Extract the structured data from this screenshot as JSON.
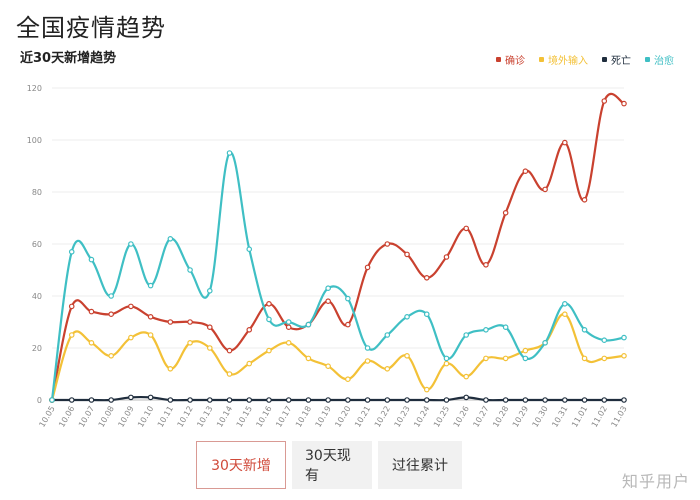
{
  "page": {
    "title": "全国疫情趋势"
  },
  "tabs": [
    {
      "label": "30天新增",
      "active": true
    },
    {
      "label": "30天现有",
      "active": false
    },
    {
      "label": "过往累计",
      "active": false
    }
  ],
  "watermark": "知乎用户",
  "chart_data": {
    "type": "line",
    "title": "全国疫情趋势",
    "subtitle": "近30天新增趋势",
    "legend_position": "top-right",
    "ylim": [
      0,
      120
    ],
    "yticks": [
      0,
      20,
      40,
      60,
      80,
      100,
      120
    ],
    "grid": true,
    "categories": [
      "10.05",
      "10.06",
      "10.07",
      "10.08",
      "10.09",
      "10.10",
      "10.11",
      "10.12",
      "10.13",
      "10.14",
      "10.15",
      "10.16",
      "10.17",
      "10.18",
      "10.19",
      "10.20",
      "10.21",
      "10.22",
      "10.23",
      "10.24",
      "10.25",
      "10.26",
      "10.27",
      "10.28",
      "10.29",
      "10.30",
      "10.31",
      "11.01",
      "11.02",
      "11.03"
    ],
    "series": [
      {
        "name": "确诊",
        "color": "#c9412f",
        "values": [
          0,
          36,
          34,
          33,
          36,
          32,
          30,
          30,
          28,
          19,
          27,
          37,
          28,
          29,
          38,
          29,
          51,
          60,
          56,
          47,
          55,
          66,
          52,
          72,
          88,
          81,
          99,
          77,
          115,
          114
        ]
      },
      {
        "name": "境外输入",
        "color": "#f3c137",
        "values": [
          0,
          25,
          22,
          17,
          24,
          25,
          12,
          22,
          20,
          10,
          14,
          19,
          22,
          16,
          13,
          8,
          15,
          12,
          17,
          4,
          14,
          9,
          16,
          16,
          19,
          22,
          33,
          16,
          16,
          17
        ]
      },
      {
        "name": "死亡",
        "color": "#1f2d3d",
        "values": [
          0,
          0,
          0,
          0,
          1,
          1,
          0,
          0,
          0,
          0,
          0,
          0,
          0,
          0,
          0,
          0,
          0,
          0,
          0,
          0,
          0,
          1,
          0,
          0,
          0,
          0,
          0,
          0,
          0,
          0
        ]
      },
      {
        "name": "治愈",
        "color": "#3fbfc4",
        "values": [
          0,
          57,
          54,
          40,
          60,
          44,
          62,
          50,
          42,
          95,
          58,
          31,
          30,
          29,
          43,
          39,
          20,
          25,
          32,
          33,
          16,
          25,
          27,
          28,
          16,
          22,
          37,
          27,
          23,
          24
        ]
      }
    ]
  }
}
